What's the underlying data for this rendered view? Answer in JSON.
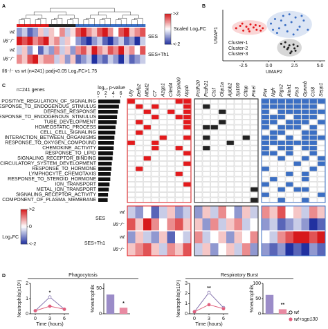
{
  "chart_data": [
    {
      "type": "heatmap",
      "panel": "A",
      "note": "Il6⁻/⁻ vs wt (n=241) padj<0.05 Log₂FC>1.75",
      "rows": [
        "wt",
        "Il6⁻/⁻",
        "wt",
        "Il6⁻/⁻"
      ],
      "groups": [
        "SES",
        "SES+Th1"
      ],
      "cluster_colors": [
        "#e41a1c",
        "#222222",
        "#3b6fc4"
      ],
      "cluster_bar": true,
      "cluster_gap": false,
      "column_cluster": [
        0,
        0,
        0,
        0,
        0,
        0,
        1,
        1,
        1,
        1,
        1,
        2,
        2,
        2,
        2,
        2,
        2,
        2,
        2,
        2,
        2,
        2,
        2,
        2
      ],
      "colorbar": {
        "title": "Scaled Log₂FC",
        "lim": [
          -2,
          2
        ],
        "ticks": [
          {
            "value": 2,
            "label": ">2"
          },
          {
            "value": -2,
            "label": "<-2"
          }
        ]
      },
      "values": [
        [
          -1,
          -0.5,
          -1.5,
          -1,
          0.5,
          -0.5,
          0.5,
          0,
          1,
          -0.5,
          0.3,
          1.5,
          2,
          1,
          0.5,
          1.5,
          2,
          1,
          0,
          1.5,
          2,
          0.5,
          1,
          1.5
        ],
        [
          2,
          1.5,
          2,
          1,
          1.5,
          2,
          0.5,
          1,
          -0.5,
          0.5,
          0,
          -1,
          -1.5,
          -2,
          -1,
          -0.5,
          -1.5,
          -2,
          -1,
          -0.5,
          -1.5,
          -1,
          -2,
          -0.5
        ],
        [
          -0.5,
          0.5,
          -1,
          0,
          -1.5,
          -0.5,
          -1,
          1,
          -0.5,
          0.5,
          -1,
          1,
          1.5,
          0.5,
          2,
          1,
          0.5,
          1.5,
          1,
          2,
          0.5,
          1,
          0,
          1.5
        ],
        [
          1,
          0.5,
          1.5,
          2,
          0.5,
          1,
          1,
          -0.5,
          0.5,
          -1,
          0.5,
          -1.5,
          -1,
          -0.5,
          -2,
          -1,
          -1.5,
          -0.5,
          -1,
          -2,
          -0.5,
          -1.5,
          -1,
          -0.5
        ]
      ]
    },
    {
      "type": "scatter",
      "panel": "B",
      "xlabel": "UMAP2",
      "ylabel": "UMAP1",
      "xlim": [
        -4.5,
        5.5
      ],
      "ylim": [
        -3,
        3.6
      ],
      "xticks": [
        -2.5,
        {
          "value": 0,
          "label": "0.0"
        },
        2.5,
        {
          "value": 5,
          "label": "5.0"
        }
      ],
      "series": [
        {
          "name": "Cluster-1",
          "color": "#e41a1c",
          "x": [
            -3.2,
            -2.8,
            -2.5,
            -2.2,
            -2.0,
            -1.8,
            -1.5,
            -1.2,
            -0.9,
            -0.6,
            -2.6,
            -1.9,
            -1.3,
            -0.8
          ],
          "y": [
            1.2,
            1.5,
            0.9,
            1.4,
            1.1,
            1.7,
            1.3,
            1.0,
            1.5,
            1.2,
            1.8,
            0.8,
            1.6,
            0.9
          ]
        },
        {
          "name": "Cluster-2",
          "color": "#222222",
          "x": [
            1.2,
            1.5,
            1.8,
            2.0,
            2.2,
            2.5,
            2.8,
            1.6,
            2.1,
            2.4,
            1.9,
            2.6
          ],
          "y": [
            -0.8,
            -1.2,
            -1.5,
            -1.0,
            -1.8,
            -1.4,
            -1.1,
            -0.6,
            -2.0,
            -0.9,
            -1.3,
            -1.7
          ]
        },
        {
          "name": "Cluster-3",
          "color": "#3b6fc4",
          "x": [
            0.2,
            0.6,
            1.0,
            1.4,
            1.8,
            2.2,
            2.6,
            3.0,
            3.4,
            3.8,
            0.8,
            1.6,
            2.4,
            3.2,
            1.2,
            2.0,
            2.8,
            0.4
          ],
          "y": [
            1.8,
            2.4,
            1.2,
            2.8,
            0.8,
            2.0,
            2.6,
            1.4,
            2.2,
            1.0,
            0.6,
            1.6,
            0.4,
            2.8,
            2.2,
            3.0,
            1.0,
            1.0
          ]
        }
      ]
    },
    {
      "type": "barh",
      "panel": "C",
      "title": "log₁₀ p-value",
      "note": "n=241 genes",
      "color": "#111111",
      "xlim": [
        0,
        7
      ],
      "xticks": [
        0,
        2,
        4,
        6
      ],
      "categories": [
        "POSITIVE_REGULATION_OF_SIGNALING",
        "RESPONSE_TO_ENDOGENOUS_STIMULUS",
        "DEFENSE_RESPONSE",
        "RESPONSE_TO_ENDOGENOUS_STIMULUS",
        "TUBE_DEVELOPMENT",
        "HOMEOSTATIC_PROCESS",
        "CELL_CELL_SIGNALING",
        "INTERACTION_BETWEEN_ORGANISMS",
        "RESPONSE_TO_OXYGEN_COMPOUND",
        "CHEMOKINE_ACTIVITY",
        "RESPONSE_TO_LIPID",
        "SIGNALING_RECEPTOR_BINDING",
        "CIRCULATORY_SYSTEM_DEVELOPMENT",
        "RESPONSE_TO_HORMONE",
        "LYMPHOCYTE_CHEMOTAXIS",
        "RESPONSE_TO_STEROID_HORMONE",
        "ION_TRANSPORT",
        "METAL_ION_TRANSPORT",
        "SIGNALING_RECEPTOR_ACTIVITY",
        "COMPONENT_OF_PLASMA_MEMBRANE"
      ],
      "values": [
        5.8,
        5.5,
        5.2,
        5.0,
        4.9,
        4.6,
        4.5,
        4.3,
        4.2,
        4.1,
        3.9,
        3.8,
        3.6,
        3.5,
        3.3,
        3.2,
        3.0,
        2.8,
        2.6,
        2.5
      ]
    },
    {
      "type": "matrix",
      "genes": [
        "Uty",
        "Defb2",
        "Mttaf2",
        "C7",
        "Azgp1",
        "Cited4",
        "Serpinb9",
        "Nppb",
        "Pcdh20",
        "Pcdh21",
        "Ctsf",
        "Obp1a",
        "Apbb2",
        "Sp100",
        "Cltap",
        "Pmel",
        "Plvr",
        "Ngfr",
        "Ptgs2",
        "Atoh1",
        "Ptx3",
        "Gpnmb",
        "Ccl8",
        "Sepp1"
      ],
      "cluster_colors": [
        "#e41a1c",
        "#222222",
        "#3b6fc4"
      ],
      "column_cluster": [
        0,
        0,
        0,
        0,
        0,
        0,
        0,
        0,
        1,
        1,
        1,
        1,
        1,
        1,
        1,
        1,
        2,
        2,
        2,
        2,
        2,
        2,
        2,
        2
      ],
      "values": [
        [
          1,
          0,
          0,
          0,
          0,
          0,
          1,
          1,
          0,
          0,
          0,
          0,
          0,
          0,
          0,
          0,
          1,
          1,
          1,
          1,
          1,
          1,
          1,
          1
        ],
        [
          0,
          1,
          0,
          1,
          0,
          0,
          0,
          1,
          0,
          1,
          0,
          0,
          0,
          0,
          0,
          0,
          1,
          1,
          1,
          1,
          1,
          1,
          1,
          0
        ],
        [
          0,
          0,
          1,
          0,
          0,
          1,
          0,
          1,
          0,
          0,
          0,
          1,
          0,
          0,
          0,
          0,
          1,
          0,
          1,
          1,
          1,
          1,
          1,
          1
        ],
        [
          0,
          0,
          0,
          1,
          0,
          0,
          1,
          1,
          0,
          0,
          0,
          0,
          0,
          0,
          0,
          0,
          1,
          1,
          1,
          0,
          1,
          1,
          1,
          0
        ],
        [
          0,
          1,
          0,
          0,
          0,
          0,
          0,
          1,
          0,
          0,
          0,
          1,
          0,
          0,
          0,
          0,
          1,
          1,
          0,
          1,
          1,
          1,
          0,
          1
        ],
        [
          0,
          0,
          1,
          0,
          0,
          0,
          0,
          1,
          0,
          1,
          1,
          0,
          0,
          0,
          0,
          0,
          1,
          0,
          1,
          1,
          1,
          0,
          1,
          0
        ],
        [
          0,
          1,
          0,
          0,
          0,
          0,
          0,
          0,
          0,
          0,
          0,
          0,
          0,
          0,
          0,
          0,
          0,
          1,
          1,
          0,
          0,
          1,
          1,
          0
        ],
        [
          0,
          0,
          0,
          0,
          1,
          0,
          0,
          1,
          0,
          1,
          0,
          0,
          0,
          0,
          1,
          0,
          1,
          1,
          0,
          1,
          0,
          1,
          1,
          1
        ],
        [
          1,
          0,
          0,
          1,
          0,
          0,
          0,
          0,
          0,
          0,
          0,
          0,
          1,
          0,
          0,
          0,
          1,
          1,
          1,
          1,
          1,
          1,
          1,
          0
        ],
        [
          0,
          0,
          0,
          1,
          0,
          0,
          1,
          0,
          0,
          1,
          0,
          0,
          0,
          0,
          0,
          0,
          1,
          0,
          1,
          1,
          0,
          1,
          1,
          0
        ],
        [
          0,
          0,
          0,
          0,
          0,
          0,
          0,
          1,
          0,
          0,
          0,
          0,
          0,
          0,
          0,
          0,
          1,
          1,
          0,
          1,
          0,
          0,
          1,
          0
        ],
        [
          0,
          0,
          1,
          0,
          0,
          0,
          0,
          0,
          0,
          0,
          0,
          0,
          0,
          0,
          0,
          0,
          0,
          0,
          1,
          0,
          0,
          1,
          0,
          1
        ],
        [
          0,
          0,
          0,
          0,
          0,
          0,
          0,
          1,
          0,
          0,
          0,
          0,
          0,
          0,
          0,
          0,
          0,
          0,
          0,
          0,
          1,
          0,
          0,
          1
        ],
        [
          0,
          1,
          0,
          0,
          0,
          0,
          0,
          0,
          0,
          0,
          0,
          0,
          0,
          0,
          0,
          0,
          1,
          0,
          0,
          0,
          0,
          0,
          1,
          0
        ],
        [
          0,
          0,
          0,
          0,
          0,
          0,
          1,
          0,
          0,
          0,
          0,
          0,
          0,
          0,
          0,
          0,
          0,
          0,
          0,
          1,
          0,
          1,
          0,
          0
        ],
        [
          0,
          0,
          0,
          0,
          0,
          0,
          0,
          0,
          0,
          0,
          0,
          0,
          0,
          0,
          0,
          0,
          0,
          1,
          0,
          0,
          0,
          1,
          0,
          0
        ],
        [
          0,
          0,
          0,
          0,
          0,
          0,
          0,
          1,
          0,
          0,
          0,
          0,
          0,
          0,
          0,
          0,
          1,
          0,
          0,
          1,
          0,
          0,
          0,
          0
        ],
        [
          0,
          0,
          0,
          0,
          0,
          0,
          0,
          0,
          0,
          0,
          0,
          0,
          0,
          0,
          0,
          1,
          0,
          0,
          1,
          0,
          1,
          1,
          0,
          0
        ],
        [
          0,
          0,
          0,
          0,
          0,
          0,
          0,
          0,
          0,
          0,
          0,
          0,
          0,
          0,
          0,
          0,
          1,
          0,
          0,
          0,
          0,
          0,
          0,
          1
        ],
        [
          0,
          0,
          0,
          0,
          0,
          0,
          0,
          0,
          0,
          0,
          0,
          0,
          0,
          0,
          0,
          1,
          0,
          0,
          1,
          0,
          0,
          1,
          0,
          0
        ]
      ]
    },
    {
      "type": "heatmap",
      "rows": [
        "wt",
        "Il6⁻/⁻",
        "wt",
        "Il6⁻/⁻"
      ],
      "groups": [
        "SES",
        "SES+Th1"
      ],
      "cluster_colors": [
        "#e41a1c",
        "#222222",
        "#3b6fc4"
      ],
      "cluster_bar": false,
      "cluster_gap": true,
      "column_cluster": [
        0,
        0,
        0,
        0,
        0,
        0,
        0,
        0,
        1,
        1,
        1,
        1,
        1,
        1,
        1,
        1,
        2,
        2,
        2,
        2,
        2,
        2,
        2,
        2
      ],
      "colorbar": {
        "title": "Log₂FC",
        "lim": [
          -2,
          2
        ],
        "ticks": [
          {
            "value": 2,
            "label": ">2"
          },
          0,
          {
            "value": -2,
            "label": "<-2"
          }
        ]
      },
      "values": [
        [
          -0.5,
          -1,
          0,
          -1.5,
          -0.5,
          0.5,
          -1,
          -0.5,
          -1,
          0.5,
          -0.5,
          1,
          0,
          -1,
          0.5,
          -0.5,
          1,
          0.5,
          1.5,
          0,
          0.5,
          -0.5,
          1,
          0.5
        ],
        [
          1.5,
          0.5,
          2,
          1,
          0,
          1,
          1.5,
          0.5,
          0.5,
          -1,
          1,
          -0.5,
          0.5,
          1,
          -0.5,
          0,
          -1,
          -0.5,
          -1.5,
          -1,
          -0.5,
          -1,
          -2,
          -1.5
        ],
        [
          -1,
          0.5,
          -0.5,
          -1,
          0.5,
          -1.5,
          0,
          -0.5,
          1,
          -0.5,
          0,
          0.5,
          -1,
          0.5,
          0,
          1,
          0,
          -0.5,
          1,
          1.5,
          2,
          2,
          1.5,
          2
        ],
        [
          0.5,
          1,
          1.5,
          0.5,
          -0.5,
          1,
          0.5,
          1.5,
          -0.5,
          0.5,
          -1,
          0,
          0.5,
          -0.5,
          1,
          -1,
          -1,
          -1.5,
          -1,
          -2,
          -1.5,
          -2,
          -1,
          -1.5
        ]
      ]
    },
    {
      "type": "line",
      "panel": "D",
      "title": "Phagocytosis",
      "xlabel": "Time (hours)",
      "ylabel": "Neutrophils(x10⁵)",
      "x": [
        0,
        3,
        6
      ],
      "xticks": [
        0,
        3,
        6
      ],
      "xlim": [
        -1,
        7
      ],
      "ylim": [
        0,
        2
      ],
      "yticks": [
        0,
        1,
        2
      ],
      "annotation": "*",
      "series": [
        {
          "name": "wt",
          "color": "#8877b0",
          "values": [
            0.2,
            1.1,
            0.3
          ]
        },
        {
          "name": "wt+sgp130",
          "color": "#e0607e",
          "values": [
            0.2,
            0.5,
            0.3
          ]
        }
      ]
    },
    {
      "type": "bar",
      "ylabel": "%neutrophils",
      "categories": [
        null,
        null
      ],
      "values": [
        38,
        12
      ],
      "colors": [
        "#9b8cc8",
        "#e88aa2"
      ],
      "ylim": [
        0,
        60
      ],
      "yticks": [
        0,
        50
      ],
      "annotation": "*"
    },
    {
      "type": "line",
      "title": "Respiratory Burst",
      "xlabel": "Time (hours)",
      "ylabel": "Neutrophils(x10⁵)",
      "x": [
        0,
        3,
        6
      ],
      "xticks": [
        0,
        3,
        6
      ],
      "xlim": [
        -1,
        7
      ],
      "ylim": [
        0,
        3
      ],
      "yticks": [
        0,
        1,
        2,
        3
      ],
      "annotation": "**",
      "legend": "lower right",
      "series": [
        {
          "name": "wt",
          "color": "#8877b0",
          "values": [
            0.2,
            2.1,
            0.6
          ]
        },
        {
          "name": "wt+sgp130",
          "color": "#e0607e",
          "values": [
            0.2,
            0.9,
            0.5
          ]
        }
      ]
    },
    {
      "type": "bar",
      "ylabel": "%neutrophils",
      "categories": [
        null,
        null
      ],
      "values": [
        62,
        15
      ],
      "colors": [
        "#9b8cc8",
        "#e88aa2"
      ],
      "ylim": [
        0,
        100
      ],
      "yticks": [
        0,
        50,
        100
      ],
      "annotation": "**"
    }
  ]
}
